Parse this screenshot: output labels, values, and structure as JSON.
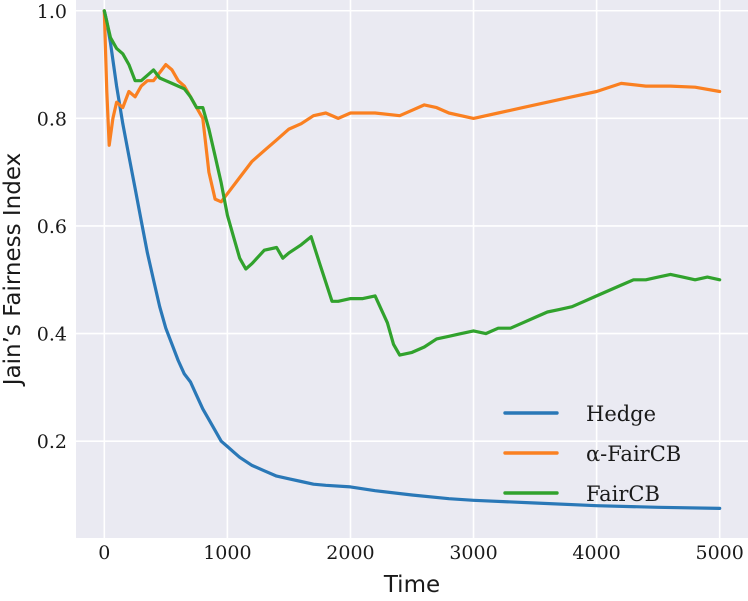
{
  "chart_data": {
    "type": "line",
    "xlabel": "Time",
    "ylabel": "Jain’s Fairness Index",
    "xlim": [
      -230,
      5230
    ],
    "ylim": [
      0.02,
      1.02
    ],
    "xticks": [
      0,
      1000,
      2000,
      3000,
      4000,
      5000
    ],
    "yticks": [
      0.2,
      0.4,
      0.6,
      0.8,
      1.0
    ],
    "grid": true,
    "background": "#eaeaf2",
    "legend_position": "bottom-right",
    "series": [
      {
        "name": "Hedge",
        "color": "#2a78b7",
        "x": [
          0,
          20,
          50,
          100,
          150,
          200,
          250,
          300,
          350,
          400,
          450,
          500,
          550,
          600,
          650,
          700,
          750,
          800,
          850,
          900,
          950,
          1000,
          1050,
          1100,
          1200,
          1300,
          1400,
          1500,
          1600,
          1700,
          1800,
          2000,
          2200,
          2500,
          2800,
          3000,
          3500,
          4000,
          4500,
          5000
        ],
        "y": [
          1.0,
          0.98,
          0.94,
          0.86,
          0.79,
          0.73,
          0.67,
          0.61,
          0.55,
          0.5,
          0.45,
          0.41,
          0.38,
          0.35,
          0.325,
          0.31,
          0.285,
          0.26,
          0.24,
          0.22,
          0.2,
          0.19,
          0.18,
          0.17,
          0.155,
          0.145,
          0.135,
          0.13,
          0.125,
          0.12,
          0.118,
          0.115,
          0.108,
          0.1,
          0.093,
          0.09,
          0.085,
          0.08,
          0.077,
          0.075
        ]
      },
      {
        "name": "α-FairCB",
        "color": "#fa8021",
        "x": [
          0,
          20,
          40,
          70,
          100,
          150,
          200,
          250,
          300,
          350,
          400,
          450,
          500,
          550,
          600,
          650,
          700,
          750,
          800,
          850,
          900,
          950,
          1000,
          1100,
          1200,
          1300,
          1400,
          1500,
          1600,
          1700,
          1800,
          1900,
          2000,
          2200,
          2400,
          2500,
          2600,
          2700,
          2800,
          3000,
          3200,
          3400,
          3600,
          3800,
          4000,
          4200,
          4400,
          4600,
          4800,
          5000
        ],
        "y": [
          1.0,
          0.85,
          0.75,
          0.8,
          0.83,
          0.82,
          0.85,
          0.84,
          0.86,
          0.87,
          0.87,
          0.885,
          0.9,
          0.89,
          0.87,
          0.86,
          0.84,
          0.82,
          0.8,
          0.7,
          0.65,
          0.645,
          0.66,
          0.69,
          0.72,
          0.74,
          0.76,
          0.78,
          0.79,
          0.805,
          0.81,
          0.8,
          0.81,
          0.81,
          0.805,
          0.815,
          0.825,
          0.82,
          0.81,
          0.8,
          0.81,
          0.82,
          0.83,
          0.84,
          0.85,
          0.865,
          0.86,
          0.86,
          0.858,
          0.85
        ]
      },
      {
        "name": "FairCB",
        "color": "#31a22d",
        "x": [
          0,
          50,
          100,
          150,
          200,
          250,
          300,
          350,
          400,
          450,
          500,
          550,
          600,
          650,
          700,
          750,
          800,
          850,
          900,
          950,
          1000,
          1050,
          1100,
          1150,
          1200,
          1300,
          1400,
          1450,
          1500,
          1600,
          1680,
          1750,
          1850,
          1900,
          2000,
          2100,
          2200,
          2300,
          2350,
          2400,
          2500,
          2600,
          2700,
          2800,
          2900,
          3000,
          3100,
          3200,
          3300,
          3400,
          3500,
          3600,
          3700,
          3800,
          3900,
          4000,
          4100,
          4200,
          4300,
          4400,
          4500,
          4600,
          4700,
          4800,
          4900,
          5000
        ],
        "y": [
          1.0,
          0.95,
          0.93,
          0.92,
          0.9,
          0.87,
          0.87,
          0.88,
          0.89,
          0.875,
          0.87,
          0.865,
          0.86,
          0.855,
          0.84,
          0.82,
          0.82,
          0.78,
          0.73,
          0.68,
          0.62,
          0.58,
          0.54,
          0.52,
          0.53,
          0.555,
          0.56,
          0.54,
          0.55,
          0.565,
          0.58,
          0.53,
          0.46,
          0.46,
          0.465,
          0.465,
          0.47,
          0.42,
          0.38,
          0.36,
          0.365,
          0.375,
          0.39,
          0.395,
          0.4,
          0.405,
          0.4,
          0.41,
          0.41,
          0.42,
          0.43,
          0.44,
          0.445,
          0.45,
          0.46,
          0.47,
          0.48,
          0.49,
          0.5,
          0.5,
          0.505,
          0.51,
          0.505,
          0.5,
          0.505,
          0.5
        ]
      }
    ]
  }
}
